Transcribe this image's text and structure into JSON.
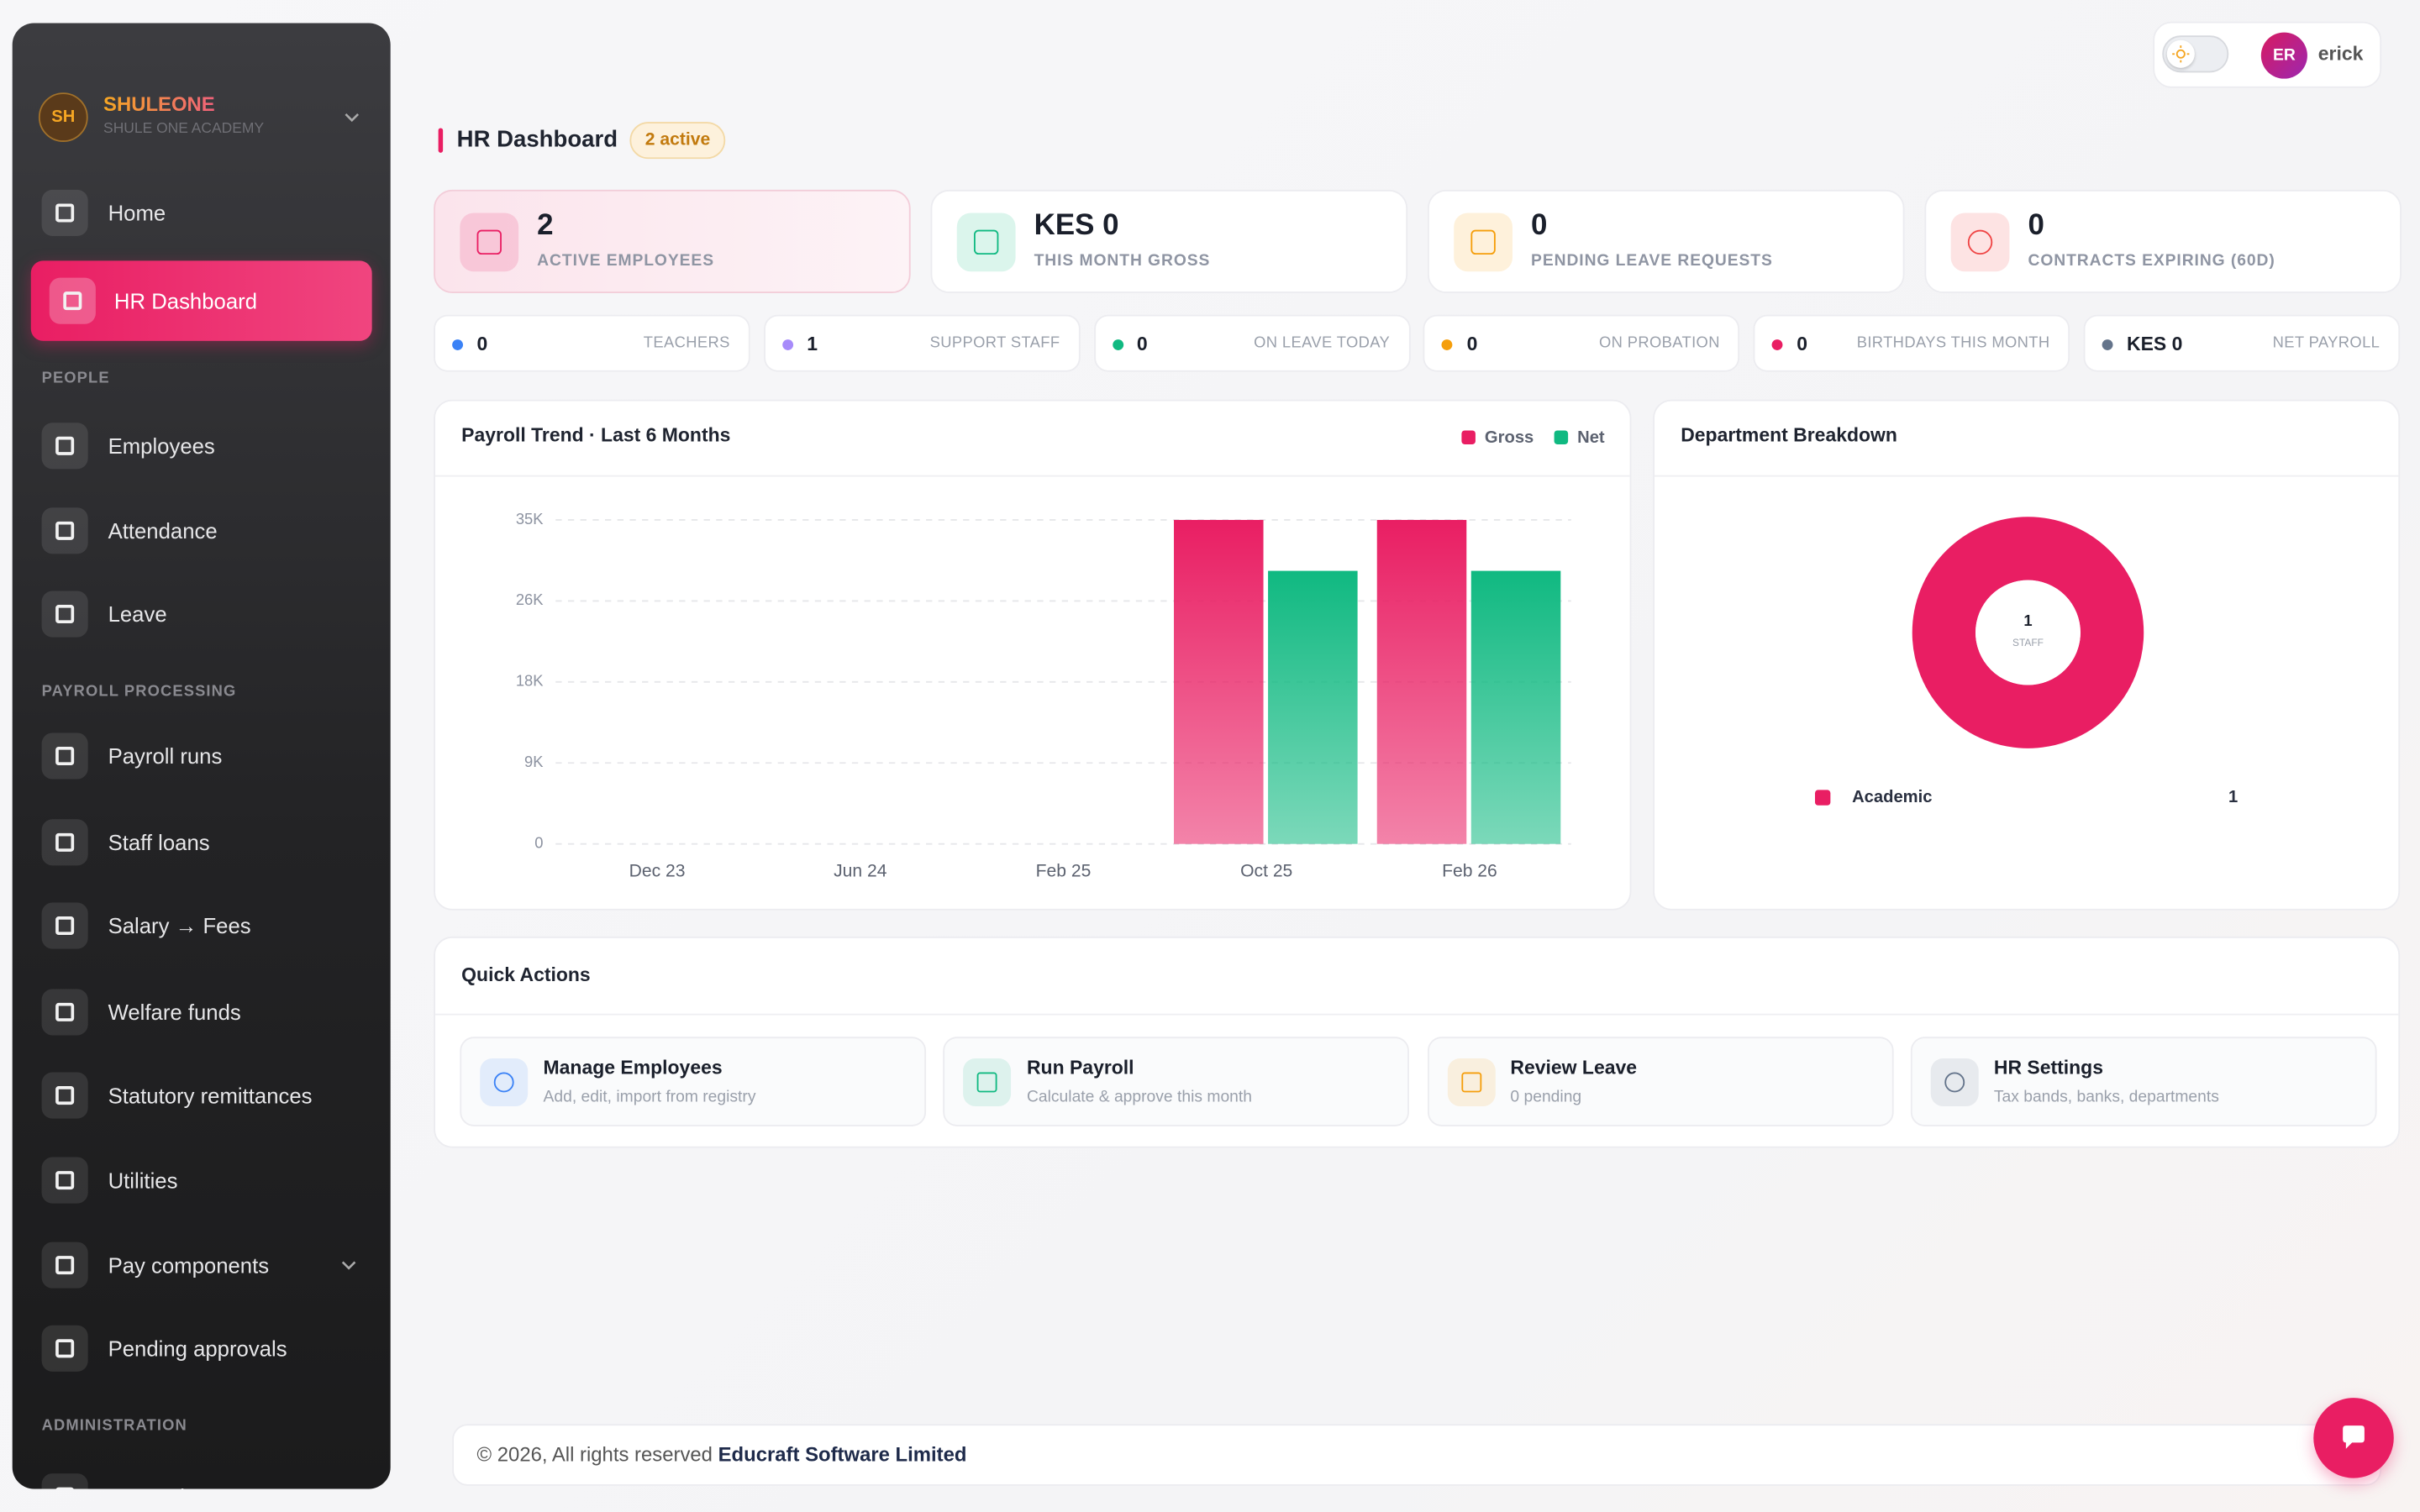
{
  "brand": {
    "initials": "SH",
    "name": "SHULEONE",
    "subtitle": "SHULE ONE ACADEMY"
  },
  "sidebar": {
    "top": [
      "Home",
      "HR Dashboard"
    ],
    "groups": [
      {
        "title": "PEOPLE",
        "items": [
          "Employees",
          "Attendance",
          "Leave"
        ]
      },
      {
        "title": "PAYROLL PROCESSING",
        "items": [
          "Payroll runs",
          "Staff loans",
          "Salary → Fees",
          "Welfare funds",
          "Statutory remittances",
          "Utilities",
          "Pay components",
          "Pending approvals"
        ]
      },
      {
        "title": "ADMINISTRATION",
        "items": [
          "HR settings"
        ]
      }
    ]
  },
  "user": {
    "initials": "ER",
    "name": "erick"
  },
  "header": {
    "title": "HR Dashboard",
    "badge": "2 active"
  },
  "stats": [
    {
      "value": 2,
      "label": "ACTIVE EMPLOYEES",
      "color": "#e91e63"
    },
    {
      "value": "KES 0",
      "label": "THIS MONTH GROSS",
      "color": "#10b981"
    },
    {
      "value": 0,
      "label": "PENDING LEAVE REQUESTS",
      "color": "#f59e0b"
    },
    {
      "value": 0,
      "label": "CONTRACTS EXPIRING (60D)",
      "color": "#ef4444"
    }
  ],
  "mini_stats": [
    {
      "value": 0,
      "label": "TEACHERS",
      "color": "#3b82f6"
    },
    {
      "value": 1,
      "label": "SUPPORT STAFF",
      "color": "#a78bfa"
    },
    {
      "value": 0,
      "label": "ON LEAVE TODAY",
      "color": "#10b981"
    },
    {
      "value": 0,
      "label": "ON PROBATION",
      "color": "#f59e0b"
    },
    {
      "value": 0,
      "label": "BIRTHDAYS THIS MONTH",
      "color": "#e91e63"
    },
    {
      "value": "KES 0",
      "label": "NET PAYROLL",
      "color": "#64748b"
    }
  ],
  "chart_data": [
    {
      "type": "bar",
      "title": "Payroll Trend · Last 6 Months",
      "categories": [
        "Dec 23",
        "Jun 24",
        "Feb 25",
        "Oct 25",
        "Feb 26"
      ],
      "series": [
        {
          "name": "Gross",
          "color": "#e91e63",
          "values": [
            0,
            0,
            0,
            35000,
            35000
          ]
        },
        {
          "name": "Net",
          "color": "#10b981",
          "values": [
            0,
            0,
            0,
            29500,
            29500
          ]
        }
      ],
      "ylim": [
        0,
        35000
      ],
      "yticks": [
        0,
        {
          "value": 8750,
          "label": "9K"
        },
        {
          "value": 17500,
          "label": "18K"
        },
        {
          "value": 26250,
          "label": "26K"
        },
        {
          "value": 35000,
          "label": "35K"
        }
      ],
      "grid": true,
      "legend": "top-right"
    },
    {
      "type": "pie",
      "title": "Department Breakdown",
      "categories": [
        "Academic"
      ],
      "values": [
        1
      ],
      "colors": [
        "#e91e63"
      ],
      "center_value": 1,
      "center_label": "STAFF"
    }
  ],
  "quick_actions": {
    "title": "Quick Actions",
    "items": [
      {
        "title": "Manage Employees",
        "description": "Add, edit, import from registry",
        "color": "#3b82f6"
      },
      {
        "title": "Run Payroll",
        "description": "Calculate & approve this month",
        "color": "#10b981"
      },
      {
        "title": "Review Leave",
        "description": "0 pending",
        "color": "#f59e0b"
      },
      {
        "title": "HR Settings",
        "description": "Tax bands, banks, departments",
        "color": "#64748b"
      }
    ]
  },
  "footer": {
    "text": "© 2026, All rights reserved",
    "company": "Educraft Software Limited"
  }
}
